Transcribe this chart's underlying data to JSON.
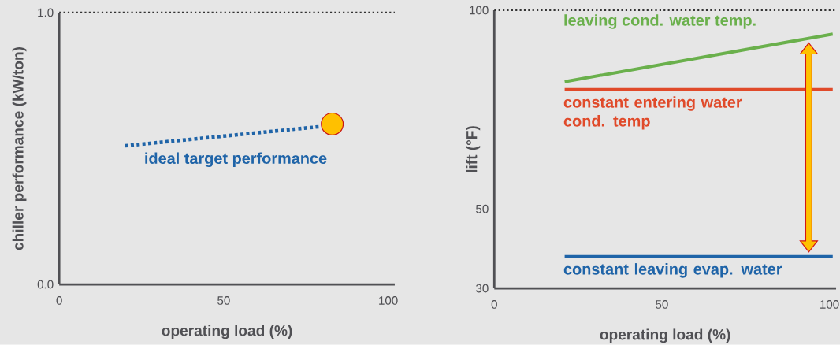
{
  "chart_data": [
    {
      "type": "line",
      "xlabel": "operating load (%)",
      "ylabel": "chiller performance (kW/ton)",
      "xlim": [
        0,
        102
      ],
      "ylim": [
        0,
        1
      ],
      "xticks": [
        0,
        50,
        100
      ],
      "yticks": [
        {
          "value": 0,
          "label": "0.0"
        },
        {
          "value": 1,
          "label": "1.0"
        }
      ],
      "ref_lines": [
        {
          "axis": "y",
          "value": 1,
          "color": "#333333",
          "line_style": "dotted"
        }
      ],
      "series": [
        {
          "name": "ideal target performance",
          "color": "#1f64a8",
          "line_style": "dotted",
          "x": [
            20,
            79
          ],
          "values": [
            0.51,
            0.58
          ]
        },
        {
          "type": "scatter",
          "color": "#ffc000",
          "marker": "circle",
          "x": [
            83
          ],
          "values": [
            0.59
          ]
        }
      ]
    },
    {
      "type": "line",
      "xlabel": "operating load (%)",
      "ylabel": "lift (°F)",
      "xlim": [
        0,
        102
      ],
      "ylim": [
        30,
        100
      ],
      "xticks": [
        0,
        50,
        100
      ],
      "yticks": [
        30,
        50,
        100
      ],
      "ref_lines": [
        {
          "axis": "y",
          "value": 100,
          "color": "#333333",
          "line_style": "dotted"
        }
      ],
      "series": [
        {
          "name": "leaving cond. water temp.",
          "color": "#6ab04c",
          "line_style": "solid",
          "x": [
            21,
            101
          ],
          "values": [
            82,
            94
          ]
        },
        {
          "name": "constant entering water cond. temp",
          "color": "#e04a2a",
          "line_style": "solid",
          "x": [
            21,
            101
          ],
          "values": [
            80,
            80
          ]
        },
        {
          "name": "constant leaving evap. water",
          "color": "#1f64a8",
          "line_style": "solid",
          "x": [
            21,
            101
          ],
          "values": [
            38,
            38
          ]
        }
      ]
    }
  ]
}
